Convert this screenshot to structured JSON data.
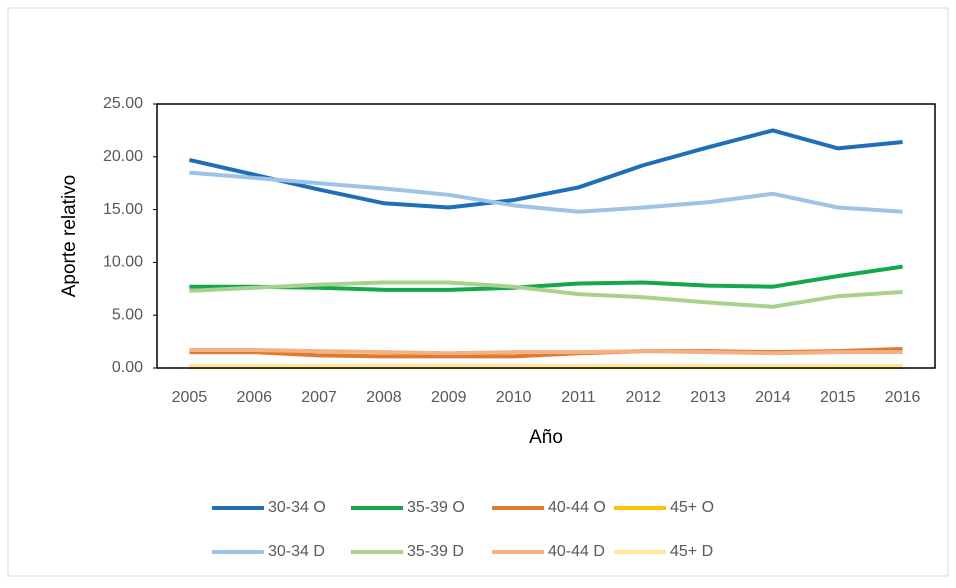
{
  "chart_data": {
    "type": "line",
    "categories": [
      "2005",
      "2006",
      "2007",
      "2008",
      "2009",
      "2010",
      "2011",
      "2012",
      "2013",
      "2014",
      "2015",
      "2016"
    ],
    "x_label": "Año",
    "y_label": "Aporte relativo",
    "ylim": [
      0,
      25
    ],
    "yticks": [
      {
        "value": 0,
        "label": "0.00"
      },
      {
        "value": 5,
        "label": "5.00"
      },
      {
        "value": 10,
        "label": "10.00"
      },
      {
        "value": 15,
        "label": "15.00"
      },
      {
        "value": 20,
        "label": "20.00"
      },
      {
        "value": 25,
        "label": "25.00"
      }
    ],
    "series": [
      {
        "name": "30-34 O",
        "color": "#1f6eb8",
        "values": [
          19.7,
          18.3,
          16.9,
          15.6,
          15.2,
          15.9,
          17.1,
          19.2,
          20.9,
          22.5,
          20.8,
          21.4
        ]
      },
      {
        "name": "35-39 O",
        "color": "#13a84a",
        "values": [
          7.7,
          7.7,
          7.6,
          7.4,
          7.4,
          7.6,
          8.0,
          8.1,
          7.8,
          7.7,
          8.7,
          9.6
        ]
      },
      {
        "name": "40-44 O",
        "color": "#e07a2e",
        "values": [
          1.5,
          1.5,
          1.2,
          1.1,
          1.1,
          1.1,
          1.4,
          1.6,
          1.6,
          1.5,
          1.6,
          1.8
        ]
      },
      {
        "name": "45+ O",
        "color": "#ffc000",
        "values": [
          0.1,
          0.1,
          0.1,
          0.1,
          0.1,
          0.1,
          0.1,
          0.1,
          0.1,
          0.1,
          0.1,
          0.1
        ]
      },
      {
        "name": "30-34 D",
        "color": "#9dc3e6",
        "values": [
          18.5,
          18.0,
          17.5,
          17.0,
          16.4,
          15.4,
          14.8,
          15.2,
          15.7,
          16.5,
          15.2,
          14.8
        ]
      },
      {
        "name": "35-39 D",
        "color": "#a9d18e",
        "values": [
          7.3,
          7.6,
          7.9,
          8.1,
          8.1,
          7.7,
          7.0,
          6.7,
          6.2,
          5.8,
          6.8,
          7.2
        ]
      },
      {
        "name": "40-44 D",
        "color": "#f4b183",
        "values": [
          1.7,
          1.7,
          1.6,
          1.5,
          1.4,
          1.5,
          1.5,
          1.6,
          1.5,
          1.4,
          1.5,
          1.5
        ]
      },
      {
        "name": "45+ D",
        "color": "#ffe699",
        "values": [
          0.2,
          0.2,
          0.2,
          0.2,
          0.2,
          0.2,
          0.2,
          0.2,
          0.2,
          0.2,
          0.2,
          0.2
        ]
      }
    ]
  }
}
